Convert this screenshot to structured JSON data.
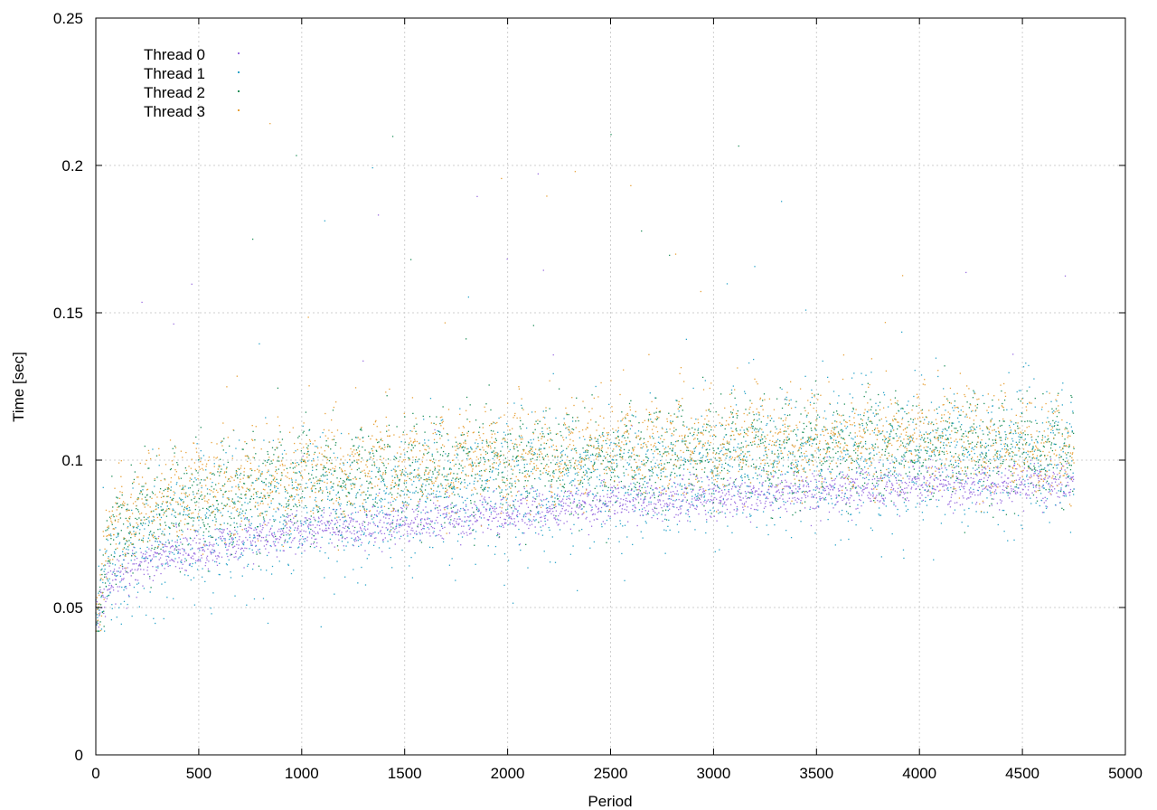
{
  "chart_data": {
    "type": "scatter",
    "title": "",
    "xlabel": "Period",
    "ylabel": "Time [sec]",
    "xlim": [
      0,
      5000
    ],
    "ylim": [
      0,
      0.25
    ],
    "x_ticks": [
      0,
      500,
      1000,
      1500,
      2000,
      2500,
      3000,
      3500,
      4000,
      4500,
      5000
    ],
    "x_tick_labels": [
      "0",
      "500",
      "1000",
      "1500",
      "2000",
      "2500",
      "3000",
      "3500",
      "4000",
      "4500",
      "5000"
    ],
    "y_ticks": [
      0,
      0.05,
      0.1,
      0.15,
      0.2,
      0.25
    ],
    "y_tick_labels": [
      "0",
      "0.05",
      "0.1",
      "0.15",
      "0.2",
      "0.25"
    ],
    "grid": true,
    "legend_position": "top-left",
    "x_points_range": [
      0,
      4750
    ],
    "series": [
      {
        "name": "Thread 0",
        "color": "#9b6fe0",
        "trend": [
          [
            0,
            0.047
          ],
          [
            50,
            0.056
          ],
          [
            100,
            0.06
          ],
          [
            250,
            0.066
          ],
          [
            500,
            0.07
          ],
          [
            1000,
            0.076
          ],
          [
            1500,
            0.079
          ],
          [
            2000,
            0.082
          ],
          [
            2500,
            0.085
          ],
          [
            3000,
            0.088
          ],
          [
            3500,
            0.09
          ],
          [
            4000,
            0.091
          ],
          [
            4750,
            0.092
          ]
        ],
        "spread": 0.0035
      },
      {
        "name": "Thread 1",
        "color": "#2aa4c9",
        "trend": [
          [
            0,
            0.048
          ],
          [
            50,
            0.06
          ],
          [
            100,
            0.066
          ],
          [
            250,
            0.072
          ],
          [
            500,
            0.077
          ],
          [
            1000,
            0.083
          ],
          [
            1500,
            0.087
          ],
          [
            2000,
            0.091
          ],
          [
            2500,
            0.094
          ],
          [
            3000,
            0.097
          ],
          [
            3500,
            0.1
          ],
          [
            4000,
            0.101
          ],
          [
            4750,
            0.102
          ]
        ],
        "spread": 0.012
      },
      {
        "name": "Thread 2",
        "color": "#1f8f5a",
        "trend": [
          [
            0,
            0.05
          ],
          [
            50,
            0.068
          ],
          [
            100,
            0.075
          ],
          [
            250,
            0.082
          ],
          [
            500,
            0.087
          ],
          [
            1000,
            0.093
          ],
          [
            1500,
            0.096
          ],
          [
            2000,
            0.099
          ],
          [
            2500,
            0.101
          ],
          [
            3000,
            0.103
          ],
          [
            3500,
            0.104
          ],
          [
            4000,
            0.105
          ],
          [
            4750,
            0.103
          ]
        ],
        "spread": 0.008
      },
      {
        "name": "Thread 3",
        "color": "#e8a23a",
        "trend": [
          [
            0,
            0.05
          ],
          [
            50,
            0.07
          ],
          [
            100,
            0.078
          ],
          [
            250,
            0.085
          ],
          [
            500,
            0.09
          ],
          [
            1000,
            0.095
          ],
          [
            1500,
            0.098
          ],
          [
            2000,
            0.102
          ],
          [
            2500,
            0.104
          ],
          [
            3000,
            0.106
          ],
          [
            3500,
            0.107
          ],
          [
            4000,
            0.108
          ],
          [
            4750,
            0.104
          ]
        ],
        "spread": 0.008
      }
    ]
  }
}
